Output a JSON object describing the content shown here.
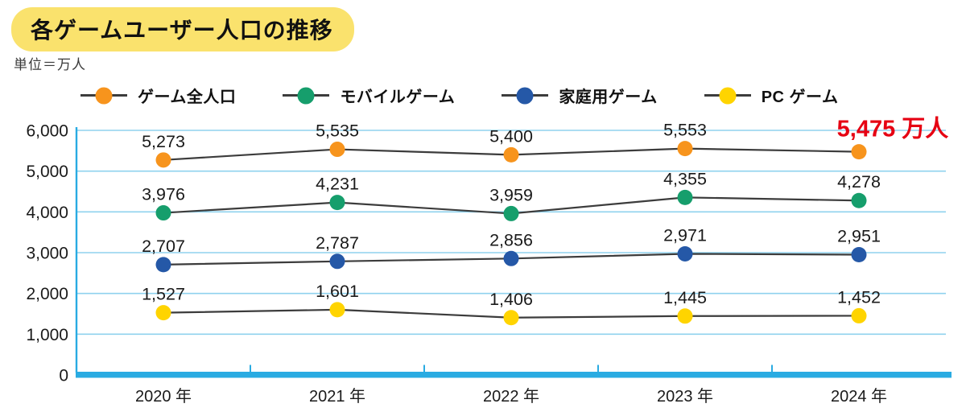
{
  "header": {
    "title": "各ゲームユーザー人口の推移",
    "unit_label": "単位＝万人"
  },
  "chart_data": {
    "type": "line",
    "title": "各ゲームユーザー人口の推移",
    "unit": "万人",
    "categories": [
      "2020 年",
      "2021 年",
      "2022 年",
      "2023 年",
      "2024 年"
    ],
    "series": [
      {
        "name": "ゲーム全人口",
        "color": "#F7941D",
        "values": [
          5273,
          5535,
          5400,
          5553,
          5475
        ]
      },
      {
        "name": "モバイルゲーム",
        "color": "#169E6C",
        "values": [
          3976,
          4231,
          3959,
          4355,
          4278
        ]
      },
      {
        "name": "家庭用ゲーム",
        "color": "#2558A7",
        "values": [
          2707,
          2787,
          2856,
          2971,
          2951
        ]
      },
      {
        "name": "PC ゲーム",
        "color": "#FFD400",
        "values": [
          1527,
          1601,
          1406,
          1445,
          1452
        ]
      }
    ],
    "highlight": {
      "series": 0,
      "index": 4,
      "text": "5,475 万人",
      "color": "#E60012"
    },
    "ylim": [
      0,
      6000
    ],
    "ytick_step": 1000,
    "grid": true,
    "legend_position": "top",
    "colors": {
      "line": "#3C3C3C",
      "axis": "#29ABE2",
      "grid": "#8FD2EE",
      "label": "#1A1A1A",
      "title_highlight": "#FAE26D"
    }
  }
}
